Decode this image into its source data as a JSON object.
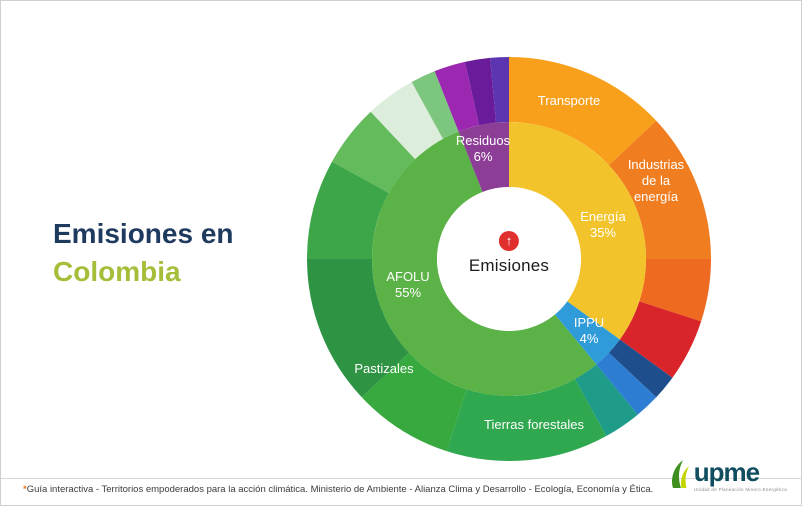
{
  "title": {
    "line1": "Emisiones en",
    "line2": "Colombia"
  },
  "icons": {
    "up_arrow": "↑"
  },
  "chart_data": {
    "type": "sunburst",
    "title": "Emisiones en Colombia",
    "center_label": "Emisiones",
    "units": "percent",
    "inner_ring": [
      {
        "name": "Energía",
        "value": 35,
        "color": "#F3C32C"
      },
      {
        "name": "IPPU",
        "value": 4,
        "color": "#2F9BD8"
      },
      {
        "name": "AFOLU",
        "value": 55,
        "color": "#5BB247"
      },
      {
        "name": "Residuos",
        "value": 6,
        "color": "#8C3E97"
      }
    ],
    "outer_ring": [
      {
        "parent": "Energía",
        "name": "Transporte",
        "value": 13,
        "color": "#F8A01B"
      },
      {
        "parent": "Energía",
        "name": "Industrias de la energía",
        "value": 12,
        "color": "#F07E21"
      },
      {
        "parent": "Energía",
        "name": "",
        "value": 5,
        "color": "#EF6A21"
      },
      {
        "parent": "Energía",
        "name": "",
        "value": 5,
        "color": "#D9252A"
      },
      {
        "parent": "IPPU",
        "name": "",
        "value": 2,
        "color": "#1F4E8C"
      },
      {
        "parent": "IPPU",
        "name": "",
        "value": 2,
        "color": "#2D7DD2"
      },
      {
        "parent": "AFOLU",
        "name": "",
        "value": 3,
        "color": "#1E9C89"
      },
      {
        "parent": "AFOLU",
        "name": "Tierras forestales",
        "value": 13,
        "color": "#2FA84F"
      },
      {
        "parent": "AFOLU",
        "name": "",
        "value": 8,
        "color": "#37A93F"
      },
      {
        "parent": "AFOLU",
        "name": "Pastizales",
        "value": 12,
        "color": "#2E9444"
      },
      {
        "parent": "AFOLU",
        "name": "",
        "value": 8,
        "color": "#3DA648"
      },
      {
        "parent": "AFOLU",
        "name": "",
        "value": 5,
        "color": "#63BB5C"
      },
      {
        "parent": "AFOLU",
        "name": "",
        "value": 4,
        "color": "#DCEDDC"
      },
      {
        "parent": "AFOLU",
        "name": "",
        "value": 2,
        "color": "#7DC67E"
      },
      {
        "parent": "Residuos",
        "name": "",
        "value": 2.5,
        "color": "#9C27B0"
      },
      {
        "parent": "Residuos",
        "name": "",
        "value": 2,
        "color": "#6A1B9A"
      },
      {
        "parent": "Residuos",
        "name": "",
        "value": 1.5,
        "color": "#5E35B1"
      }
    ],
    "labels": {
      "transporte": "Transporte",
      "residuos": "Residuos\n6%",
      "industrias": "Industrias\nde la\nenergía",
      "energia": "Energía\n35%",
      "afolu": "AFOLU\n55%",
      "ippu": "IPPU\n4%",
      "pastizales": "Pastizales",
      "tierras": "Tierras forestales"
    }
  },
  "footer": {
    "star": "*",
    "text": "Guía interactiva - Territorios empoderados para la acción climática. Ministerio de Ambiente - Alianza Clima y Desarrollo - Ecología, Economía y Ética."
  },
  "logo": {
    "name": "upme",
    "tagline": "Unidad de Planeación Minero Energética"
  }
}
